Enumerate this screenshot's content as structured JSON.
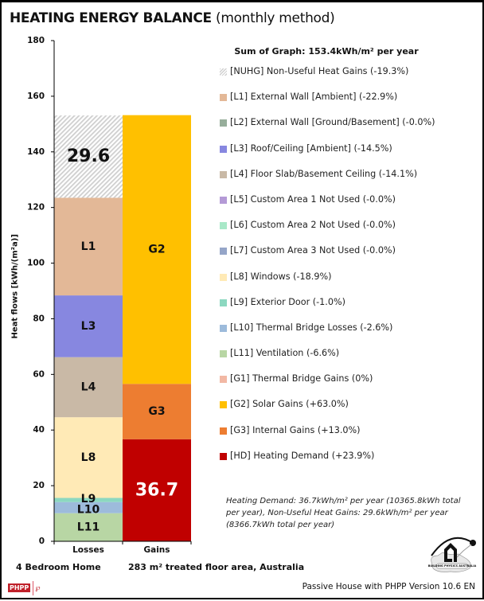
{
  "header": {
    "title_bold": "HEATING ENERGY BALANCE",
    "title_sub": "(monthly method)"
  },
  "chart_data": {
    "type": "bar",
    "stacked": true,
    "title": "HEATING ENERGY BALANCE (monthly method)",
    "xlabel": "",
    "ylabel": "Heat flows [kWh/(m²a)]",
    "ylim": [
      0,
      180
    ],
    "yticks": [
      0,
      20,
      40,
      60,
      80,
      100,
      120,
      140,
      160,
      180
    ],
    "grid": false,
    "legend_position": "right",
    "categories": [
      "Losses",
      "Gains"
    ],
    "sum_label": "Sum of Graph: 153.4kWh/m² per year",
    "stacks": [
      {
        "category": "Losses",
        "segments": [
          {
            "code": "L11",
            "label": "L11",
            "value": 10.1,
            "color": "#b8d6a4",
            "text_color": "#111111"
          },
          {
            "code": "L10",
            "label": "L10",
            "value": 4.0,
            "color": "#9dbbdb",
            "text_color": "#111111"
          },
          {
            "code": "L9",
            "label": "L9",
            "value": 1.5,
            "color": "#8cd8c0",
            "text_color": "#111111"
          },
          {
            "code": "L8",
            "label": "L8",
            "value": 29.0,
            "color": "#ffeab6",
            "text_color": "#111111"
          },
          {
            "code": "L4",
            "label": "L4",
            "value": 21.6,
            "color": "#c9b9a6",
            "text_color": "#111111"
          },
          {
            "code": "L3",
            "label": "L3",
            "value": 22.2,
            "color": "#8787e0",
            "text_color": "#111111"
          },
          {
            "code": "L1",
            "label": "L1",
            "value": 35.1,
            "color": "#e3b897",
            "text_color": "#111111"
          },
          {
            "code": "NUHG",
            "label": "29.6",
            "value": 29.6,
            "color": "hatch",
            "text_color": "#111111",
            "big": true
          }
        ]
      },
      {
        "category": "Gains",
        "segments": [
          {
            "code": "HD",
            "label": "36.7",
            "value": 36.7,
            "color": "#c00000",
            "text_color": "#ffffff",
            "big": true
          },
          {
            "code": "G3",
            "label": "G3",
            "value": 19.9,
            "color": "#ed7d31",
            "text_color": "#111111"
          },
          {
            "code": "G2",
            "label": "G2",
            "value": 96.6,
            "color": "#ffc000",
            "text_color": "#111111"
          }
        ]
      }
    ],
    "legend": [
      {
        "code": "NUHG",
        "text": "[NUHG] Non-Useful Heat Gains (-19.3%)",
        "color": "hatch"
      },
      {
        "code": "L1",
        "text": "[L1] External Wall [Ambient] (-22.9%)",
        "color": "#e3b897"
      },
      {
        "code": "L2",
        "text": "[L2] External Wall [Ground/Basement] (-0.0%)",
        "color": "#97ae9b"
      },
      {
        "code": "L3",
        "text": "[L3] Roof/Ceiling [Ambient] (-14.5%)",
        "color": "#8787e0"
      },
      {
        "code": "L4",
        "text": "[L4] Floor Slab/Basement Ceiling (-14.1%)",
        "color": "#c9b9a6"
      },
      {
        "code": "L5",
        "text": "[L5] Custom Area 1 Not Used (-0.0%)",
        "color": "#b49ad6"
      },
      {
        "code": "L6",
        "text": "[L6] Custom Area 2 Not Used (-0.0%)",
        "color": "#a8e8c8"
      },
      {
        "code": "L7",
        "text": "[L7] Custom Area 3 Not Used (-0.0%)",
        "color": "#95a5c8"
      },
      {
        "code": "L8",
        "text": "[L8] Windows (-18.9%)",
        "color": "#ffeab6"
      },
      {
        "code": "L9",
        "text": "[L9] Exterior Door (-1.0%)",
        "color": "#8cd8c0"
      },
      {
        "code": "L10",
        "text": "[L10] Thermal Bridge Losses (-2.6%)",
        "color": "#9dbbdb"
      },
      {
        "code": "L11",
        "text": "[L11] Ventilation (-6.6%)",
        "color": "#b8d6a4"
      },
      {
        "code": "G1",
        "text": "[G1] Thermal Bridge Gains (0%)",
        "color": "#f2b8a4"
      },
      {
        "code": "G2",
        "text": "[G2] Solar Gains (+63.0%)",
        "color": "#ffc000"
      },
      {
        "code": "G3",
        "text": "[G3] Internal Gains (+13.0%)",
        "color": "#ed7d31"
      },
      {
        "code": "HD",
        "text": "[HD] Heating Demand (+23.9%)",
        "color": "#c00000"
      }
    ],
    "annotation": "Heating Demand: 36.7kWh/m² per year (10365.8kWh total per year), Non-Useful Heat Gains: 29.6kWh/m² per year (8366.7kWh total per year)"
  },
  "footer": {
    "project": "4 Bedroom Home",
    "area": "283 m² treated floor area, Australia",
    "version": "Passive House with PHPP Version 10.6 EN",
    "phpp_badge": "PHPP",
    "phpp_glyph": "℘",
    "logo_text": "BUILDING PHYSICS AUSTRALIA"
  }
}
